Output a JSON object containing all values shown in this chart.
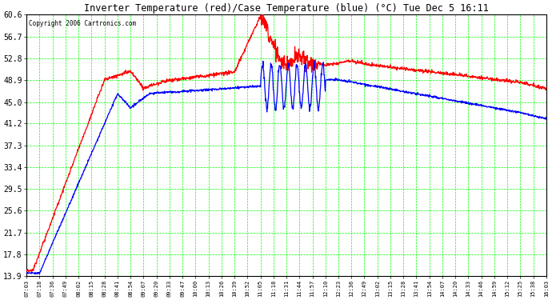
{
  "title": "Inverter Temperature (red)/Case Temperature (blue) (°C) Tue Dec 5 16:11",
  "copyright": "Copyright 2006 Cartronics.com",
  "yticks": [
    13.9,
    17.8,
    21.7,
    25.6,
    29.5,
    33.4,
    37.3,
    41.2,
    45.0,
    48.9,
    52.8,
    56.7,
    60.6
  ],
  "ymin": 13.9,
  "ymax": 60.6,
  "grid_color": "#00FF00",
  "line_color_red": "#FF0000",
  "line_color_blue": "#0000FF",
  "xtick_labels": [
    "07:03",
    "07:18",
    "07:36",
    "07:49",
    "08:02",
    "08:15",
    "08:28",
    "08:41",
    "08:54",
    "09:07",
    "09:20",
    "09:33",
    "09:47",
    "10:00",
    "10:13",
    "10:26",
    "10:39",
    "10:52",
    "11:05",
    "11:18",
    "11:31",
    "11:44",
    "11:57",
    "12:10",
    "12:23",
    "12:36",
    "12:49",
    "13:02",
    "13:15",
    "13:28",
    "13:41",
    "13:54",
    "14:07",
    "14:20",
    "14:33",
    "14:46",
    "14:59",
    "15:12",
    "15:25",
    "15:38",
    "16:03"
  ]
}
